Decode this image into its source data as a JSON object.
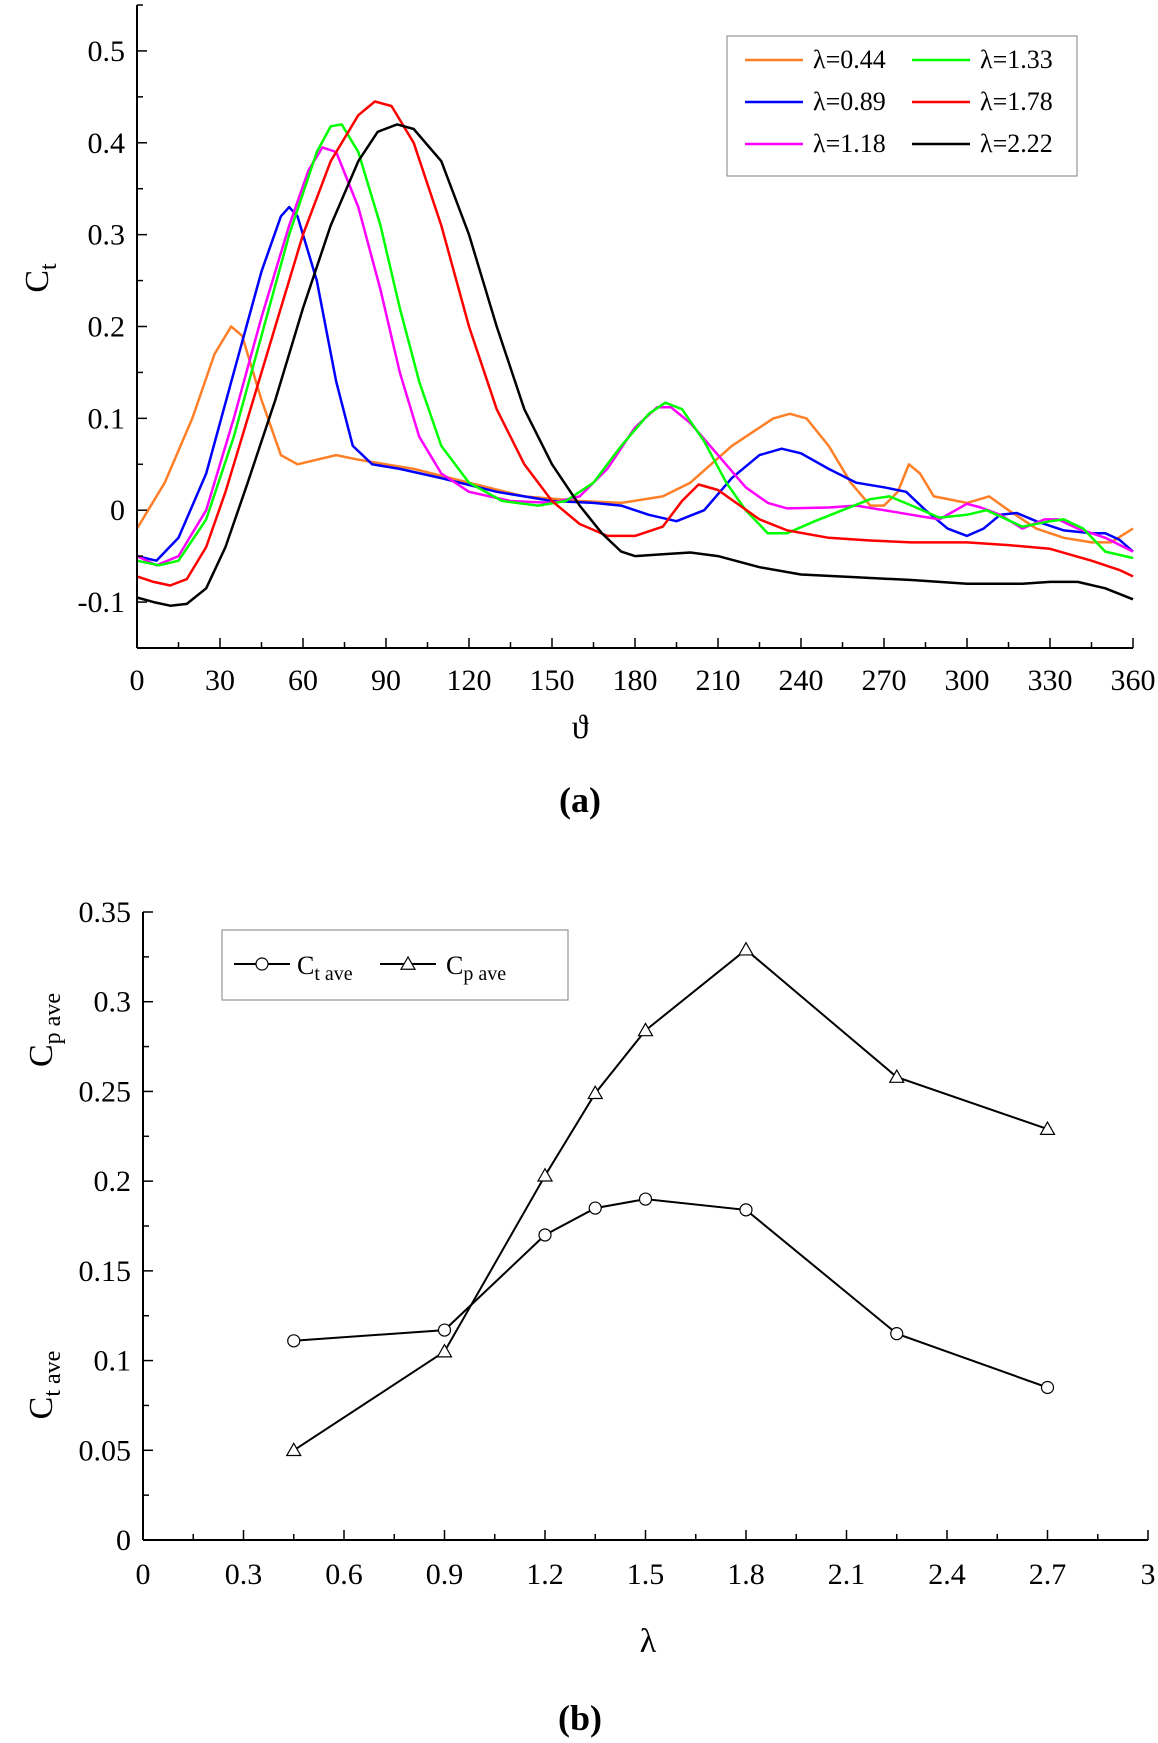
{
  "chart_data": [
    {
      "type": "line",
      "panel_label": "(a)",
      "xlabel": "ϑ",
      "ylabel": "C",
      "ylabel_sub": "t",
      "xlim": [
        0,
        360
      ],
      "ylim": [
        -0.15,
        0.55
      ],
      "xticks": [
        0,
        30,
        60,
        90,
        120,
        150,
        180,
        210,
        240,
        270,
        300,
        330,
        360
      ],
      "yticks": [
        -0.1,
        0,
        0.1,
        0.2,
        0.3,
        0.4,
        0.5
      ],
      "ytick_labels": [
        "-0.1",
        "0",
        "0.1",
        "0.2",
        "0.3",
        "0.4",
        "0.5"
      ],
      "grid": false,
      "legend_position": "top-right",
      "series": [
        {
          "name": "λ=0.44",
          "color": "#ff7f27",
          "points": [
            [
              0,
              -0.02
            ],
            [
              10,
              0.03
            ],
            [
              20,
              0.1
            ],
            [
              28,
              0.17
            ],
            [
              34,
              0.2
            ],
            [
              38,
              0.19
            ],
            [
              45,
              0.12
            ],
            [
              52,
              0.06
            ],
            [
              58,
              0.05
            ],
            [
              65,
              0.055
            ],
            [
              72,
              0.06
            ],
            [
              80,
              0.055
            ],
            [
              90,
              0.05
            ],
            [
              100,
              0.045
            ],
            [
              120,
              0.03
            ],
            [
              140,
              0.015
            ],
            [
              160,
              0.01
            ],
            [
              175,
              0.008
            ],
            [
              190,
              0.015
            ],
            [
              200,
              0.03
            ],
            [
              215,
              0.07
            ],
            [
              230,
              0.1
            ],
            [
              236,
              0.105
            ],
            [
              242,
              0.1
            ],
            [
              250,
              0.07
            ],
            [
              258,
              0.03
            ],
            [
              265,
              0.005
            ],
            [
              270,
              0.005
            ],
            [
              275,
              0.02
            ],
            [
              279,
              0.05
            ],
            [
              283,
              0.04
            ],
            [
              288,
              0.015
            ],
            [
              300,
              0.008
            ],
            [
              308,
              0.015
            ],
            [
              315,
              0.0
            ],
            [
              325,
              -0.02
            ],
            [
              335,
              -0.03
            ],
            [
              345,
              -0.035
            ],
            [
              352,
              -0.035
            ],
            [
              360,
              -0.02
            ]
          ]
        },
        {
          "name": "λ=0.89",
          "color": "#0000ff",
          "points": [
            [
              0,
              -0.05
            ],
            [
              7,
              -0.055
            ],
            [
              15,
              -0.03
            ],
            [
              25,
              0.04
            ],
            [
              35,
              0.15
            ],
            [
              45,
              0.26
            ],
            [
              52,
              0.32
            ],
            [
              55,
              0.33
            ],
            [
              58,
              0.32
            ],
            [
              65,
              0.25
            ],
            [
              72,
              0.14
            ],
            [
              78,
              0.07
            ],
            [
              85,
              0.05
            ],
            [
              95,
              0.045
            ],
            [
              110,
              0.035
            ],
            [
              130,
              0.02
            ],
            [
              150,
              0.01
            ],
            [
              165,
              0.008
            ],
            [
              175,
              0.005
            ],
            [
              185,
              -0.005
            ],
            [
              195,
              -0.012
            ],
            [
              205,
              0.0
            ],
            [
              215,
              0.035
            ],
            [
              225,
              0.06
            ],
            [
              233,
              0.067
            ],
            [
              240,
              0.062
            ],
            [
              250,
              0.045
            ],
            [
              260,
              0.03
            ],
            [
              270,
              0.025
            ],
            [
              278,
              0.02
            ],
            [
              285,
              0.0
            ],
            [
              293,
              -0.02
            ],
            [
              300,
              -0.028
            ],
            [
              306,
              -0.02
            ],
            [
              312,
              -0.005
            ],
            [
              318,
              -0.003
            ],
            [
              325,
              -0.012
            ],
            [
              335,
              -0.022
            ],
            [
              345,
              -0.025
            ],
            [
              350,
              -0.025
            ],
            [
              355,
              -0.032
            ],
            [
              360,
              -0.045
            ]
          ]
        },
        {
          "name": "λ=1.18",
          "color": "#ff00ff",
          "points": [
            [
              0,
              -0.05
            ],
            [
              7,
              -0.06
            ],
            [
              15,
              -0.05
            ],
            [
              25,
              0.0
            ],
            [
              35,
              0.1
            ],
            [
              45,
              0.21
            ],
            [
              55,
              0.31
            ],
            [
              62,
              0.37
            ],
            [
              67,
              0.395
            ],
            [
              72,
              0.39
            ],
            [
              80,
              0.33
            ],
            [
              88,
              0.24
            ],
            [
              95,
              0.15
            ],
            [
              102,
              0.08
            ],
            [
              110,
              0.04
            ],
            [
              120,
              0.02
            ],
            [
              135,
              0.01
            ],
            [
              150,
              0.008
            ],
            [
              160,
              0.015
            ],
            [
              170,
              0.045
            ],
            [
              180,
              0.09
            ],
            [
              188,
              0.112
            ],
            [
              193,
              0.112
            ],
            [
              200,
              0.095
            ],
            [
              210,
              0.06
            ],
            [
              220,
              0.025
            ],
            [
              228,
              0.008
            ],
            [
              235,
              0.002
            ],
            [
              250,
              0.003
            ],
            [
              260,
              0.005
            ],
            [
              270,
              0.0
            ],
            [
              280,
              -0.005
            ],
            [
              290,
              -0.01
            ],
            [
              300,
              0.007
            ],
            [
              305,
              0.003
            ],
            [
              312,
              -0.005
            ],
            [
              320,
              -0.02
            ],
            [
              328,
              -0.01
            ],
            [
              333,
              -0.01
            ],
            [
              340,
              -0.02
            ],
            [
              350,
              -0.03
            ],
            [
              360,
              -0.045
            ]
          ]
        },
        {
          "name": "λ=1.33",
          "color": "#00ff00",
          "points": [
            [
              0,
              -0.055
            ],
            [
              8,
              -0.06
            ],
            [
              15,
              -0.055
            ],
            [
              25,
              -0.01
            ],
            [
              35,
              0.08
            ],
            [
              45,
              0.19
            ],
            [
              55,
              0.3
            ],
            [
              65,
              0.39
            ],
            [
              70,
              0.418
            ],
            [
              74,
              0.42
            ],
            [
              80,
              0.39
            ],
            [
              88,
              0.31
            ],
            [
              95,
              0.22
            ],
            [
              102,
              0.14
            ],
            [
              110,
              0.07
            ],
            [
              120,
              0.03
            ],
            [
              132,
              0.01
            ],
            [
              145,
              0.005
            ],
            [
              155,
              0.01
            ],
            [
              165,
              0.03
            ],
            [
              175,
              0.07
            ],
            [
              185,
              0.105
            ],
            [
              191,
              0.117
            ],
            [
              197,
              0.11
            ],
            [
              205,
              0.075
            ],
            [
              213,
              0.03
            ],
            [
              220,
              0.0
            ],
            [
              228,
              -0.025
            ],
            [
              235,
              -0.025
            ],
            [
              245,
              -0.012
            ],
            [
              255,
              0.0
            ],
            [
              265,
              0.012
            ],
            [
              272,
              0.015
            ],
            [
              280,
              0.005
            ],
            [
              290,
              -0.008
            ],
            [
              300,
              -0.005
            ],
            [
              307,
              0.0
            ],
            [
              313,
              -0.008
            ],
            [
              320,
              -0.018
            ],
            [
              330,
              -0.012
            ],
            [
              335,
              -0.01
            ],
            [
              342,
              -0.02
            ],
            [
              350,
              -0.045
            ],
            [
              360,
              -0.052
            ]
          ]
        },
        {
          "name": "λ=1.78",
          "color": "#ff0000",
          "points": [
            [
              0,
              -0.072
            ],
            [
              6,
              -0.078
            ],
            [
              12,
              -0.082
            ],
            [
              18,
              -0.075
            ],
            [
              25,
              -0.04
            ],
            [
              32,
              0.02
            ],
            [
              40,
              0.1
            ],
            [
              50,
              0.2
            ],
            [
              60,
              0.3
            ],
            [
              70,
              0.38
            ],
            [
              80,
              0.43
            ],
            [
              86,
              0.445
            ],
            [
              92,
              0.44
            ],
            [
              100,
              0.4
            ],
            [
              110,
              0.31
            ],
            [
              120,
              0.2
            ],
            [
              130,
              0.11
            ],
            [
              140,
              0.05
            ],
            [
              150,
              0.01
            ],
            [
              160,
              -0.015
            ],
            [
              170,
              -0.028
            ],
            [
              180,
              -0.028
            ],
            [
              190,
              -0.018
            ],
            [
              197,
              0.01
            ],
            [
              203,
              0.028
            ],
            [
              210,
              0.022
            ],
            [
              218,
              0.005
            ],
            [
              225,
              -0.01
            ],
            [
              235,
              -0.022
            ],
            [
              250,
              -0.03
            ],
            [
              265,
              -0.033
            ],
            [
              280,
              -0.035
            ],
            [
              300,
              -0.035
            ],
            [
              315,
              -0.038
            ],
            [
              330,
              -0.042
            ],
            [
              345,
              -0.055
            ],
            [
              355,
              -0.065
            ],
            [
              360,
              -0.072
            ]
          ]
        },
        {
          "name": "λ=2.22",
          "color": "#000000",
          "points": [
            [
              0,
              -0.095
            ],
            [
              6,
              -0.1
            ],
            [
              12,
              -0.104
            ],
            [
              18,
              -0.102
            ],
            [
              25,
              -0.085
            ],
            [
              32,
              -0.04
            ],
            [
              40,
              0.03
            ],
            [
              50,
              0.12
            ],
            [
              60,
              0.22
            ],
            [
              70,
              0.31
            ],
            [
              80,
              0.38
            ],
            [
              87,
              0.412
            ],
            [
              94,
              0.42
            ],
            [
              100,
              0.415
            ],
            [
              110,
              0.38
            ],
            [
              120,
              0.3
            ],
            [
              130,
              0.2
            ],
            [
              140,
              0.11
            ],
            [
              150,
              0.05
            ],
            [
              160,
              0.005
            ],
            [
              168,
              -0.025
            ],
            [
              175,
              -0.045
            ],
            [
              180,
              -0.05
            ],
            [
              190,
              -0.048
            ],
            [
              200,
              -0.046
            ],
            [
              210,
              -0.05
            ],
            [
              225,
              -0.062
            ],
            [
              240,
              -0.07
            ],
            [
              260,
              -0.073
            ],
            [
              280,
              -0.076
            ],
            [
              300,
              -0.08
            ],
            [
              320,
              -0.08
            ],
            [
              330,
              -0.078
            ],
            [
              340,
              -0.078
            ],
            [
              350,
              -0.085
            ],
            [
              360,
              -0.097
            ]
          ]
        }
      ]
    },
    {
      "type": "line",
      "panel_label": "(b)",
      "xlabel": "λ",
      "ylabel_top": "C",
      "ylabel_top_sub": "p ave",
      "ylabel_bottom": "C",
      "ylabel_bottom_sub": "t ave",
      "xlim": [
        0,
        3
      ],
      "ylim": [
        0,
        0.35
      ],
      "xticks": [
        0,
        0.3,
        0.6,
        0.9,
        1.2,
        1.5,
        1.8,
        2.1,
        2.4,
        2.7,
        3
      ],
      "xtick_labels": [
        "0",
        "0.3",
        "0.6",
        "0.9",
        "1.2",
        "1.5",
        "1.8",
        "2.1",
        "2.4",
        "2.7",
        "3"
      ],
      "yticks": [
        0,
        0.05,
        0.1,
        0.15,
        0.2,
        0.25,
        0.3,
        0.35
      ],
      "ytick_labels": [
        "0",
        "0.05",
        "0.1",
        "0.15",
        "0.2",
        "0.25",
        "0.3",
        "0.35"
      ],
      "grid": false,
      "legend_position": "top-left",
      "x": [
        0.45,
        0.9,
        1.2,
        1.35,
        1.5,
        1.8,
        2.25,
        2.7
      ],
      "series": [
        {
          "name": "C",
          "name_sub": "t ave",
          "marker": "circle",
          "color": "#000000",
          "values": [
            0.111,
            0.117,
            0.17,
            0.185,
            0.19,
            0.184,
            0.115,
            0.085
          ]
        },
        {
          "name": "C",
          "name_sub": "p ave",
          "marker": "triangle",
          "color": "#000000",
          "values": [
            0.05,
            0.105,
            0.203,
            0.249,
            0.284,
            0.329,
            0.258,
            0.229
          ]
        }
      ]
    }
  ]
}
